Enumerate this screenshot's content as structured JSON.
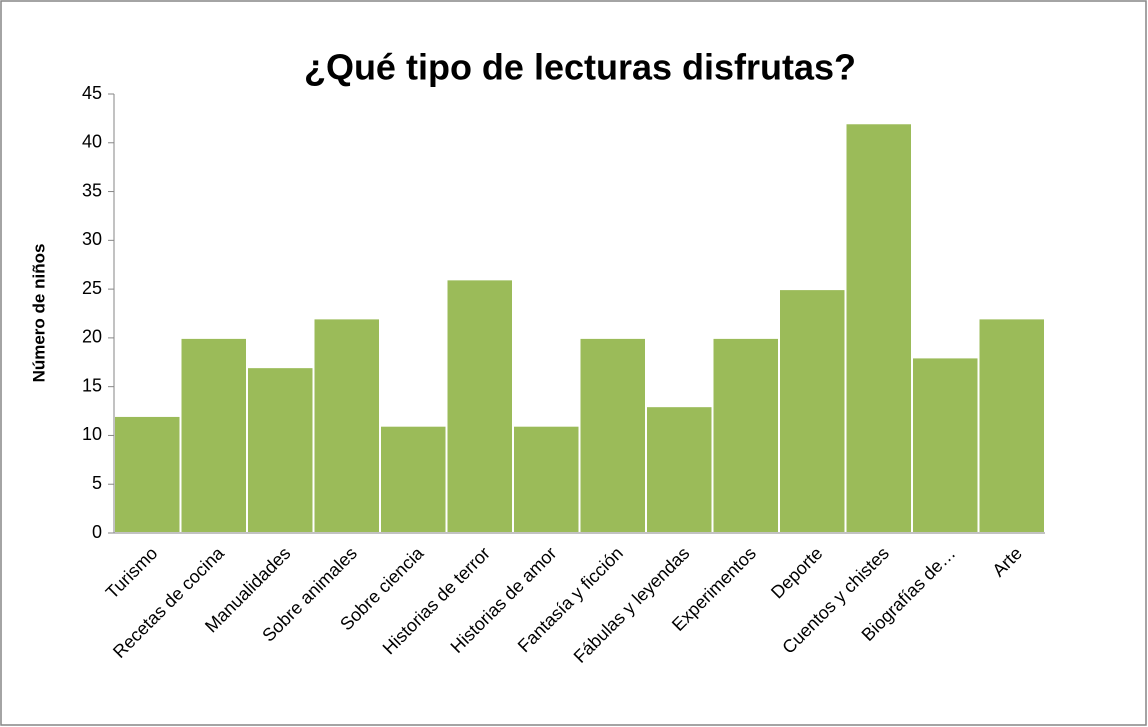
{
  "chart_data": {
    "type": "bar",
    "title": "¿Qué tipo de lecturas disfrutas?",
    "y_label": "Número de niños",
    "categories": [
      "Turismo",
      "Recetas de cocina",
      "Manualidades",
      "Sobre animales",
      "Sobre ciencia",
      "Historias de terror",
      "Historias de amor",
      "Fantasía y ficción",
      "Fábulas y leyendas",
      "Experimentos",
      "Deporte",
      "Cuentos y chistes",
      "Biografías de…",
      "Arte"
    ],
    "values": [
      12,
      20,
      17,
      22,
      11,
      26,
      11,
      20,
      13,
      20,
      25,
      42,
      18,
      22
    ],
    "color": "#9bbb59",
    "ylim": [
      0,
      45
    ],
    "yticks": [
      0,
      5,
      10,
      15,
      20,
      25,
      30,
      35,
      40,
      45
    ],
    "grid": false
  }
}
